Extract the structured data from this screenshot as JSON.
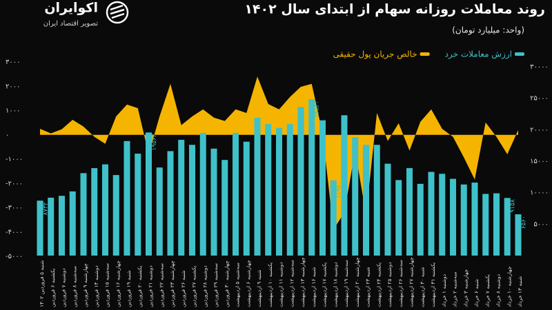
{
  "brand": {
    "name": "اکوایران",
    "tagline": "تصویر اقتصاد ایران"
  },
  "chart_data": {
    "type": "bar-area",
    "title": "روند معاملات روزانه سهام از ابتدای سال ۱۴۰۲",
    "subtitle": "(واحد: میلیارد تومان)",
    "categories": [
      "شنبه ۵ فروردین ۱۴۰۲",
      "یکشنبه ۶ فروردین",
      "دوشنبه ۷ فروردین",
      "سه‌شنبه ۸ فروردین",
      "چهارشنبه ۹ فروردین",
      "دوشنبه ۱۴ فروردین",
      "سه‌شنبه ۱۵ فروردین",
      "چهارشنبه ۱۶ فروردین",
      "شنبه ۱۹ فروردین",
      "یکشنبه ۲۰ فروردین",
      "دوشنبه ۲۱ فروردین",
      "سه‌شنبه ۲۲ فروردین",
      "چهارشنبه ۲۳ فروردین",
      "شنبه ۲۶ فروردین",
      "یکشنبه ۲۷ فروردین",
      "دوشنبه ۲۸ فروردین",
      "سه‌شنبه ۲۹ فروردین",
      "چهارشنبه ۳۰ فروردین",
      "سه‌شنبه ۵ اردیبهشت",
      "چهارشنبه ۶ اردیبهشت",
      "شنبه ۹ اردیبهشت",
      "یکشنبه ۱۰ اردیبهشت",
      "دوشنبه ۱۱ اردیبهشت",
      "سه‌شنبه ۱۲ اردیبهشت",
      "چهارشنبه ۱۳ اردیبهشت",
      "شنبه ۱۶ اردیبهشت",
      "یکشنبه ۱۷ اردیبهشت",
      "دوشنبه ۱۸ اردیبهشت",
      "سه‌شنبه ۱۹ اردیبهشت",
      "چهارشنبه ۲۰ اردیبهشت",
      "شنبه ۲۳ اردیبهشت",
      "یکشنبه ۲۴ اردیبهشت",
      "دوشنبه ۲۵ اردیبهشت",
      "سه‌شنبه ۲۶ اردیبهشت",
      "چهارشنبه ۲۷ اردیبهشت",
      "شنبه ۳۰ اردیبهشت",
      "یکشنبه ۳۱ اردیبهشت",
      "دوشنبه ۱ خرداد",
      "سه‌شنبه ۲ خرداد",
      "چهارشنبه ۳ خرداد",
      "شنبه ۶ خرداد",
      "یکشنبه ۷ خرداد",
      "دوشنبه ۸ خرداد",
      "چهارشنبه ۱۰ خرداد",
      "شنبه ۱۳ خرداد"
    ],
    "series": [
      {
        "name": "ارزش معاملات خرد",
        "color": "#3fc1c9",
        "axis": "y2",
        "draw": "bar",
        "values": [
          8732,
          9200,
          9500,
          10200,
          13100,
          13900,
          14500,
          12800,
          18200,
          16200,
          19563,
          14000,
          16600,
          18400,
          17600,
          19500,
          17000,
          15200,
          19500,
          18100,
          21900,
          20900,
          20300,
          20900,
          23600,
          24840,
          21500,
          11950,
          22300,
          18800,
          17600,
          17600,
          14600,
          12000,
          13900,
          11400,
          13300,
          13000,
          12200,
          11300,
          11600,
          9800,
          9900,
          9158,
          6560
        ],
        "value_labels": [
          "۸۷۳۲",
          null,
          null,
          null,
          null,
          null,
          null,
          null,
          null,
          null,
          "۱۹۵۶۳",
          null,
          null,
          null,
          null,
          null,
          null,
          null,
          null,
          null,
          null,
          null,
          null,
          null,
          null,
          "۲۴۸۴۰",
          null,
          "۱۱۹۵۰",
          null,
          null,
          null,
          null,
          null,
          null,
          null,
          null,
          null,
          null,
          null,
          null,
          null,
          null,
          null,
          "۹۱۵۸",
          "۶۵۶۰"
        ]
      },
      {
        "name": "خالص جریان پول حقیقی",
        "color": "#f5b400",
        "axis": "y",
        "draw": "area",
        "values": [
          250,
          60,
          230,
          620,
          340,
          -80,
          -370,
          760,
          1250,
          1100,
          -800,
          760,
          2100,
          400,
          760,
          1050,
          710,
          570,
          1050,
          900,
          2400,
          1270,
          1050,
          1560,
          1980,
          2100,
          60,
          -3900,
          -3200,
          -650,
          -3300,
          900,
          -250,
          480,
          -650,
          540,
          1050,
          250,
          -80,
          -930,
          -1840,
          510,
          -80,
          -800,
          200
        ]
      }
    ],
    "ylim": [
      -5000,
      3000
    ],
    "yticks": [
      {
        "value": 3000,
        "label": "۳۰۰۰"
      },
      {
        "value": 2000,
        "label": "۲۰۰۰"
      },
      {
        "value": 1000,
        "label": "۱۰۰۰"
      },
      {
        "value": 0,
        "label": "۰"
      },
      {
        "value": -1000,
        "label": "-۱۰۰۰"
      },
      {
        "value": -2000,
        "label": "-۲۰۰۰"
      },
      {
        "value": -3000,
        "label": "-۳۰۰۰"
      },
      {
        "value": -4000,
        "label": "-۴۰۰۰"
      },
      {
        "value": -5000,
        "label": "-۵۰۰۰"
      }
    ],
    "y2lim": [
      0,
      30000
    ],
    "y2ticks": [
      {
        "value": 30000,
        "label": "۳۰۰۰۰"
      },
      {
        "value": 25000,
        "label": "۲۵۰۰۰"
      },
      {
        "value": 20000,
        "label": "۲۰۰۰۰"
      },
      {
        "value": 15000,
        "label": "۱۵۰۰۰"
      },
      {
        "value": 10000,
        "label": "۱۰۰۰۰"
      },
      {
        "value": 5000,
        "label": "۵۰۰۰"
      }
    ],
    "legend": "top-right"
  }
}
